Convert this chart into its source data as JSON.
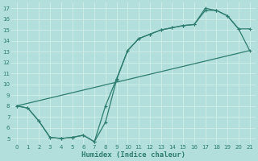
{
  "background_color": "#b2dfdb",
  "grid_color": "#d0eeea",
  "line_color": "#2e7d6e",
  "xlabel": "Humidex (Indice chaleur)",
  "xlim": [
    -0.5,
    21.5
  ],
  "ylim": [
    4.5,
    17.5
  ],
  "xticks": [
    0,
    1,
    2,
    3,
    4,
    5,
    6,
    7,
    8,
    9,
    10,
    11,
    12,
    13,
    14,
    15,
    16,
    17,
    18,
    19,
    20,
    21
  ],
  "yticks": [
    5,
    6,
    7,
    8,
    9,
    10,
    11,
    12,
    13,
    14,
    15,
    16,
    17
  ],
  "line1_x": [
    0,
    1,
    2,
    3,
    4,
    5,
    6,
    7,
    8,
    9,
    10,
    11,
    12,
    13,
    14,
    15,
    16,
    17,
    18,
    19,
    20,
    21
  ],
  "line1_y": [
    8.0,
    7.8,
    6.6,
    5.1,
    5.0,
    5.1,
    5.3,
    4.7,
    6.5,
    10.4,
    13.1,
    14.2,
    14.6,
    15.0,
    15.2,
    15.4,
    15.5,
    16.8,
    16.8,
    16.3,
    15.1,
    15.1
  ],
  "line2_x": [
    0,
    1,
    2,
    3,
    4,
    5,
    6,
    7,
    8,
    9,
    10,
    11,
    12,
    13,
    14,
    15,
    16,
    17,
    18,
    19,
    20,
    21
  ],
  "line2_y": [
    8.0,
    7.8,
    6.6,
    5.1,
    5.0,
    5.1,
    5.3,
    4.7,
    8.0,
    10.5,
    13.1,
    14.2,
    14.6,
    15.0,
    15.2,
    15.4,
    15.5,
    17.0,
    16.8,
    16.3,
    15.1,
    13.1
  ],
  "line3_x": [
    0,
    21
  ],
  "line3_y": [
    8.0,
    13.1
  ],
  "marker_size": 2.5,
  "linewidth": 0.9,
  "xlabel_fontsize": 6.5,
  "tick_fontsize": 5.0
}
